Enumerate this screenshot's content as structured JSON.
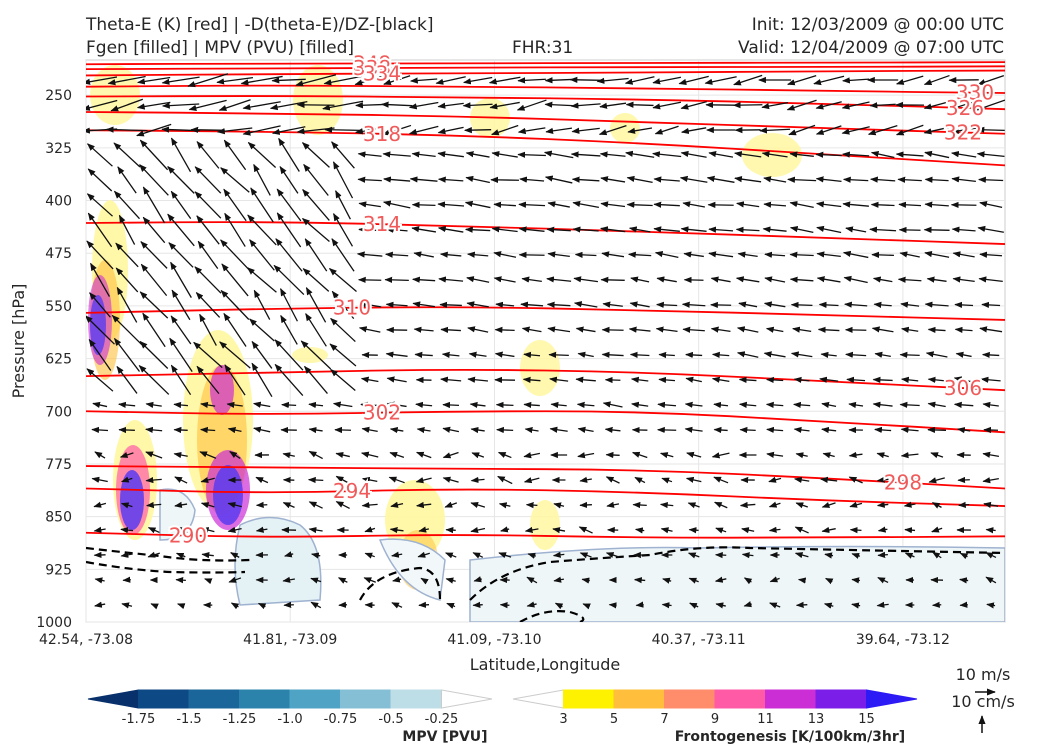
{
  "header": {
    "title_left_1": "Theta-E (K) [red] | -D(theta-E)/DZ-[black]",
    "title_left_2": "Fgen [filled] | MPV (PVU) [filled]",
    "title_center": "FHR:31",
    "title_right_1": "Init: 12/03/2009 @ 00:00 UTC",
    "title_right_2": "Valid: 12/04/2009 @ 07:00 UTC"
  },
  "colors": {
    "theta_e": "#ff0000",
    "theta_label": "#f05a5a",
    "stability": "#000000",
    "mpv_outline": "#9fb2d0"
  },
  "chart_data": {
    "type": "cross-section",
    "xlabel": "Latitude,Longitude",
    "ylabel": "Pressure [hPa]",
    "x_ticks": [
      "42.54, -73.08",
      "41.81, -73.09",
      "41.09, -73.10",
      "40.37, -73.11",
      "39.64, -73.12"
    ],
    "y_ticks": [
      250,
      325,
      400,
      475,
      550,
      625,
      700,
      775,
      850,
      925,
      1000
    ],
    "ylim": [
      1000,
      200
    ],
    "grid": true,
    "theta_e_contours": [
      {
        "label": "348",
        "p": [
          206,
          205,
          205,
          204,
          204,
          203
        ]
      },
      {
        "label": "338",
        "p": [
          213,
          212,
          211,
          210,
          210,
          209
        ]
      },
      {
        "label": "334",
        "p": [
          222,
          220,
          219,
          218,
          216,
          215
        ]
      },
      {
        "label": "330",
        "p": [
          238,
          236,
          238,
          240,
          244,
          247
        ]
      },
      {
        "label": "326",
        "p": [
          252,
          251,
          253,
          256,
          262,
          270
        ]
      },
      {
        "label": "322",
        "p": [
          274,
          276,
          280,
          288,
          297,
          305
        ]
      },
      {
        "label": "318",
        "p": [
          300,
          302,
          307,
          318,
          334,
          350
        ]
      },
      {
        "label": "314",
        "p": [
          432,
          430,
          436,
          444,
          453,
          462
        ]
      },
      {
        "label": "310",
        "p": [
          560,
          554,
          551,
          556,
          563,
          570
        ]
      },
      {
        "label": "306",
        "p": [
          650,
          645,
          640,
          644,
          657,
          670
        ]
      },
      {
        "label": "302",
        "p": [
          700,
          705,
          700,
          700,
          714,
          730
        ]
      },
      {
        "label": "298",
        "p": [
          778,
          780,
          782,
          783,
          795,
          810
        ]
      },
      {
        "label": "294",
        "p": [
          810,
          817,
          810,
          815,
          827,
          835
        ]
      },
      {
        "label": "290",
        "p": [
          873,
          880,
          875,
          880,
          880,
          878
        ]
      }
    ],
    "mpv_colorbar": {
      "label": "MPV [PVU]",
      "ticks": [
        "-1.75",
        "-1.5",
        "-1.25",
        "-1.0",
        "-0.75",
        "-0.5",
        "-0.25"
      ],
      "colors": [
        "#08306b",
        "#0d4a85",
        "#1a6599",
        "#2b83ac",
        "#4fa3c4",
        "#85bfd6",
        "#bddde7",
        "#ffffff"
      ]
    },
    "fgen_colorbar": {
      "label": "Frontogenesis [K/100km/3hr]",
      "ticks": [
        "3",
        "5",
        "7",
        "9",
        "11",
        "13",
        "15"
      ],
      "colors": [
        "#ffffff",
        "#fff200",
        "#ffbf3c",
        "#ff8c6a",
        "#ff5aa5",
        "#cc2ed6",
        "#7b1ee8",
        "#2d1bf5"
      ]
    },
    "vector_key": {
      "horizontal": "10 m/s",
      "vertical": "10 cm/s"
    }
  }
}
